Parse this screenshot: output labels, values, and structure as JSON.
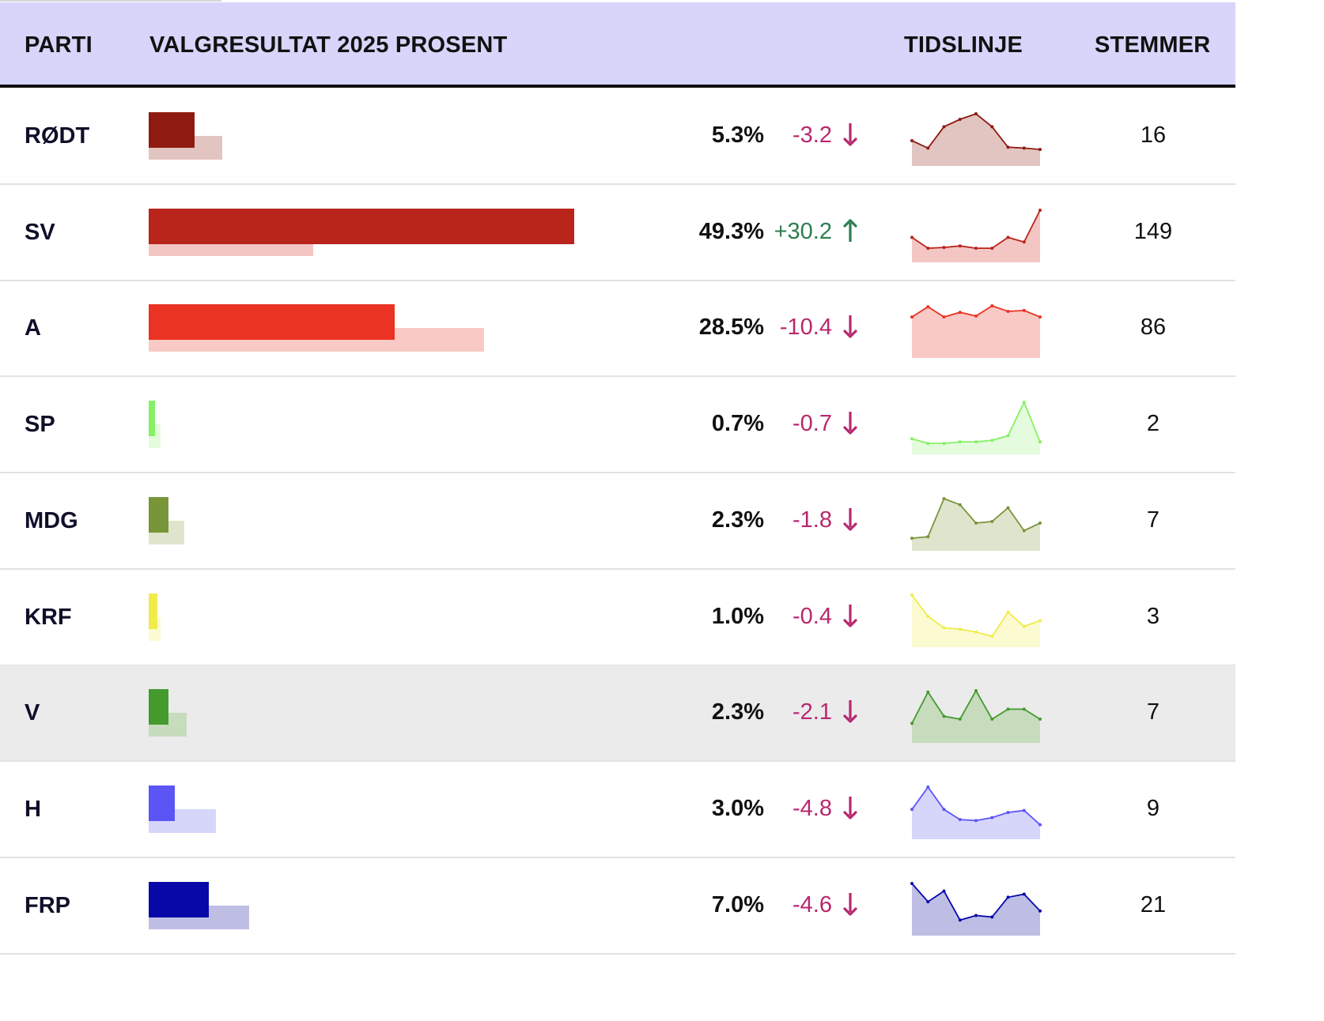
{
  "chart_data": {
    "type": "table",
    "columns": [
      "PARTI",
      "VALGRESULTAT 2025 PROSENT",
      "TIDSLINJE",
      "STEMMER"
    ],
    "bar_scale_max_percent": 55,
    "change_up_color": "#2e7d4f",
    "change_down_color": "#b8286e",
    "highlighted_row": "V",
    "rows": [
      {
        "party": "RØDT",
        "percent": 5.3,
        "pct_label": "5.3%",
        "change": -3.2,
        "change_label": "-3.2",
        "previous_percent": 8.5,
        "votes": "16",
        "color": "#8e1a12",
        "light_color": "#e2c4c1",
        "timeline": [
          8.5,
          4.5,
          16,
          20,
          23,
          16,
          5,
          4.5,
          3.8
        ]
      },
      {
        "party": "SV",
        "percent": 49.3,
        "pct_label": "49.3%",
        "change": 30.2,
        "change_label": "+30.2",
        "previous_percent": 19.1,
        "votes": "149",
        "color": "#b9241b",
        "light_color": "#f3c6c3",
        "timeline": [
          20,
          6,
          7,
          9,
          6,
          6,
          20,
          14,
          55
        ]
      },
      {
        "party": "A",
        "percent": 28.5,
        "pct_label": "28.5%",
        "change": -10.4,
        "change_label": "-10.4",
        "previous_percent": 38.9,
        "votes": "86",
        "color": "#ea3323",
        "light_color": "#f9c9c5",
        "timeline": [
          34,
          45,
          34,
          39,
          35,
          46,
          40,
          41,
          34
        ]
      },
      {
        "party": "SP",
        "percent": 0.7,
        "pct_label": "0.7%",
        "change": -0.7,
        "change_label": "-0.7",
        "previous_percent": 1.4,
        "votes": "2",
        "color": "#86f066",
        "light_color": "#e4fbdd",
        "timeline": [
          4,
          1,
          1,
          2,
          2,
          3,
          6,
          28,
          2
        ]
      },
      {
        "party": "MDG",
        "percent": 2.3,
        "pct_label": "2.3%",
        "change": -1.8,
        "change_label": "-1.8",
        "previous_percent": 4.1,
        "votes": "7",
        "color": "#78953a",
        "light_color": "#dfe5cd",
        "timeline": [
          2,
          3,
          28,
          24,
          12,
          13,
          22,
          7,
          12
        ]
      },
      {
        "party": "KRF",
        "percent": 1.0,
        "pct_label": "1.0%",
        "change": -0.4,
        "change_label": "-0.4",
        "previous_percent": 1.4,
        "votes": "3",
        "color": "#f0ec4a",
        "light_color": "#fbfad0",
        "timeline": [
          30,
          15,
          7,
          6,
          4,
          1,
          18,
          8,
          12
        ]
      },
      {
        "party": "V",
        "percent": 2.3,
        "pct_label": "2.3%",
        "change": -2.1,
        "change_label": "-2.1",
        "previous_percent": 4.4,
        "votes": "7",
        "color": "#459a2e",
        "light_color": "#c7dbbd",
        "timeline": [
          7,
          29,
          12,
          10,
          30,
          10,
          17,
          17,
          10
        ]
      },
      {
        "party": "H",
        "percent": 3.0,
        "pct_label": "3.0%",
        "change": -4.8,
        "change_label": "-4.8",
        "previous_percent": 7.8,
        "votes": "9",
        "color": "#5b55f6",
        "light_color": "#d6d6fb",
        "timeline": [
          20,
          42,
          20,
          10,
          9,
          12,
          17,
          19,
          5
        ]
      },
      {
        "party": "FRP",
        "percent": 7.0,
        "pct_label": "7.0%",
        "change": -4.6,
        "change_label": "-4.6",
        "previous_percent": 11.6,
        "votes": "21",
        "color": "#0808a8",
        "light_color": "#bebee5",
        "timeline": [
          28,
          16,
          23,
          4,
          7,
          6,
          19,
          21,
          10
        ]
      }
    ]
  }
}
